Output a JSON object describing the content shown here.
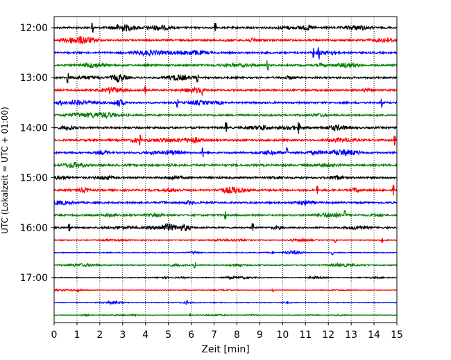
{
  "chart_data": {
    "type": "line",
    "title": "",
    "xlabel": "Zeit  [min]",
    "ylabel": "UTC (Lokalzeit = UTC + 01:00)",
    "xlim": [
      0,
      15
    ],
    "x_ticks": [
      "0",
      "1",
      "2",
      "3",
      "4",
      "5",
      "6",
      "7",
      "8",
      "9",
      "10",
      "11",
      "12",
      "13",
      "14",
      "15"
    ],
    "y_tick_labels": [
      "12:00",
      "13:00",
      "14:00",
      "15:00",
      "16:00",
      "17:00"
    ],
    "grid": "vertical-dotted",
    "series": [
      {
        "start": "12:00",
        "color": "#000000",
        "amplitude": 1.0
      },
      {
        "start": "12:15",
        "color": "#ff0000",
        "amplitude": 1.0
      },
      {
        "start": "12:30",
        "color": "#0000ff",
        "amplitude": 1.0
      },
      {
        "start": "12:45",
        "color": "#008000",
        "amplitude": 1.0
      },
      {
        "start": "13:00",
        "color": "#000000",
        "amplitude": 1.0
      },
      {
        "start": "13:15",
        "color": "#ff0000",
        "amplitude": 1.0
      },
      {
        "start": "13:30",
        "color": "#0000ff",
        "amplitude": 1.0
      },
      {
        "start": "13:45",
        "color": "#008000",
        "amplitude": 1.0
      },
      {
        "start": "14:00",
        "color": "#000000",
        "amplitude": 1.1
      },
      {
        "start": "14:15",
        "color": "#ff0000",
        "amplitude": 1.1
      },
      {
        "start": "14:30",
        "color": "#0000ff",
        "amplitude": 1.0
      },
      {
        "start": "14:45",
        "color": "#008000",
        "amplitude": 1.1
      },
      {
        "start": "15:00",
        "color": "#000000",
        "amplitude": 1.1
      },
      {
        "start": "15:15",
        "color": "#ff0000",
        "amplitude": 1.1
      },
      {
        "start": "15:30",
        "color": "#0000ff",
        "amplitude": 1.0
      },
      {
        "start": "15:45",
        "color": "#008000",
        "amplitude": 1.0
      },
      {
        "start": "16:00",
        "color": "#000000",
        "amplitude": 0.9
      },
      {
        "start": "16:15",
        "color": "#ff0000",
        "amplitude": 0.5
      },
      {
        "start": "16:30",
        "color": "#0000ff",
        "amplitude": 0.5
      },
      {
        "start": "16:45",
        "color": "#008000",
        "amplitude": 0.6
      },
      {
        "start": "17:00",
        "color": "#000000",
        "amplitude": 0.4
      },
      {
        "start": "17:15",
        "color": "#ff0000",
        "amplitude": 0.3
      },
      {
        "start": "17:30",
        "color": "#0000ff",
        "amplitude": 0.4
      },
      {
        "start": "17:45",
        "color": "#008000",
        "amplitude": 0.3
      }
    ]
  }
}
